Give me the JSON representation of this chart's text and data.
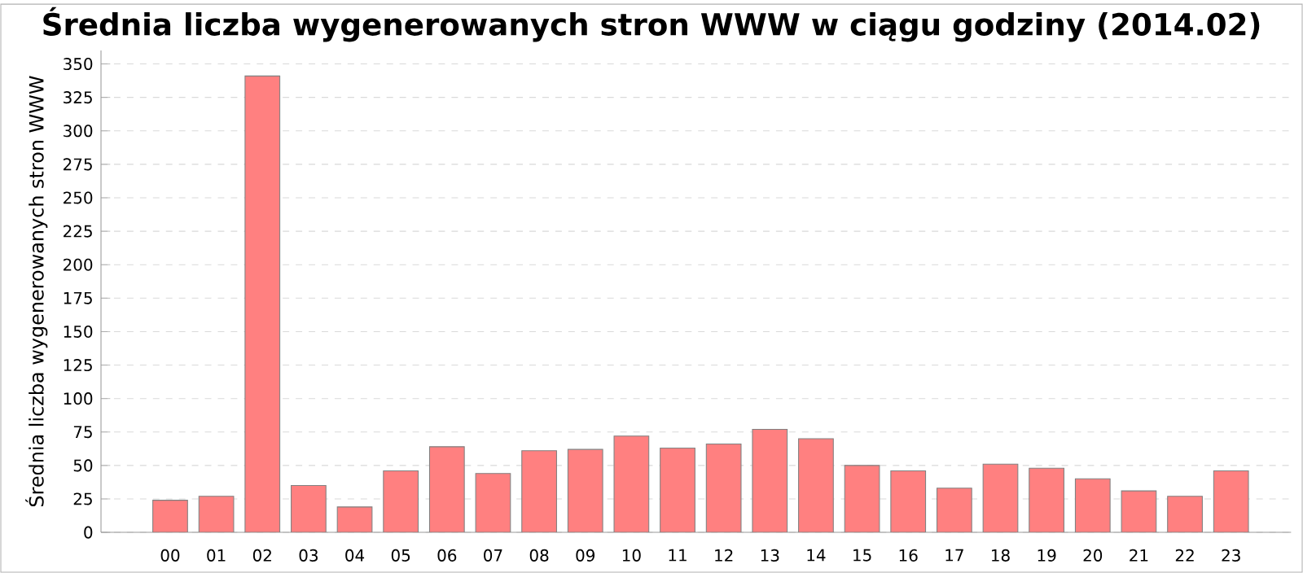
{
  "chart_data": {
    "type": "bar",
    "title": "Średnia liczba wygenerowanych stron WWW w ciągu godziny (2014.02)",
    "ylabel": "Średnia liczba wygenerowanych stron WWW",
    "categories": [
      "00",
      "01",
      "02",
      "03",
      "04",
      "05",
      "06",
      "07",
      "08",
      "09",
      "10",
      "11",
      "12",
      "13",
      "14",
      "15",
      "16",
      "17",
      "18",
      "19",
      "20",
      "21",
      "22",
      "23"
    ],
    "values": [
      24,
      27,
      341,
      35,
      19,
      46,
      64,
      44,
      61,
      62,
      72,
      63,
      66,
      77,
      70,
      50,
      46,
      33,
      51,
      48,
      40,
      31,
      27,
      46
    ],
    "color": "#ff8080",
    "ylim": [
      0,
      360
    ],
    "yticks": [
      0,
      25,
      50,
      75,
      100,
      125,
      150,
      175,
      200,
      225,
      250,
      275,
      300,
      325,
      350
    ],
    "grid": "y"
  }
}
